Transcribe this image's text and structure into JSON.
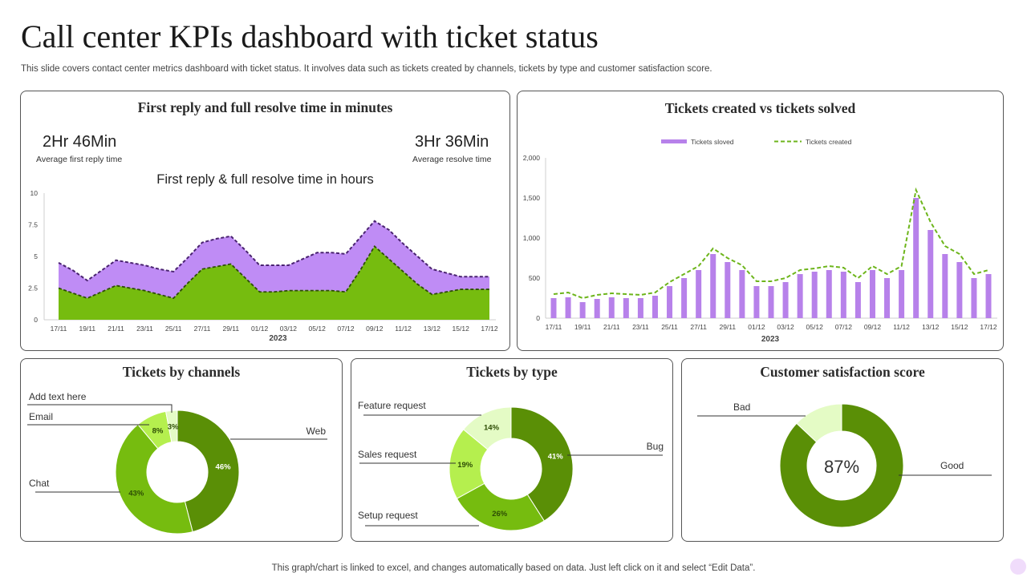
{
  "page": {
    "title": "Call center KPIs dashboard with ticket status",
    "subtitle": "This slide covers contact center metrics dashboard with ticket status. It involves data such as tickets created by channels, tickets by type and customer satisfaction score.",
    "footer": "This graph/chart is linked to excel, and changes automatically based on data. Just left click on it and select “Edit Data”."
  },
  "panels": {
    "resolve": {
      "title": "First reply and full resolve time in minutes",
      "kpi_reply_value": "2Hr  46Min",
      "kpi_reply_label": "Average first reply time",
      "kpi_resolve_value": "3Hr  36Min",
      "kpi_resolve_label": "Average resolve time",
      "chart_title": "First reply & full resolve time in hours"
    },
    "tickets": {
      "title": "Tickets created vs tickets solved"
    },
    "channels": {
      "title": "Tickets by channels"
    },
    "type": {
      "title": "Tickets by type"
    },
    "csat": {
      "title": "Customer satisfaction score",
      "center_label": "87%"
    }
  },
  "colors": {
    "purple": "#bf8cf5",
    "purple_bar": "#b781ea",
    "purple_dark": "#4a2370",
    "green": "#76bc0f",
    "green_dark": "#5a8f06",
    "green_mid": "#76bc0f",
    "green_light": "#b5ef4e",
    "green_pale": "#e4fbc5",
    "line_green": "#6db51b"
  },
  "chart_data": [
    {
      "type": "area",
      "title": "First reply & full resolve time in hours",
      "xlabel": "2023",
      "ylabel": "",
      "categories": [
        "17/11",
        "18/11",
        "19/11",
        "20/11",
        "21/11",
        "22/11",
        "23/11",
        "24/11",
        "25/11",
        "26/11",
        "27/11",
        "28/11",
        "29/11",
        "30/11",
        "01/12",
        "02/12",
        "03/12",
        "04/12",
        "05/12",
        "06/12",
        "07/12",
        "08/12",
        "09/12",
        "10/12",
        "11/12",
        "12/12",
        "13/12",
        "14/12",
        "15/12",
        "16/12",
        "17/12"
      ],
      "tick_labels": [
        "17/11",
        "19/11",
        "21/11",
        "23/11",
        "25/11",
        "27/11",
        "29/11",
        "01/12",
        "03/12",
        "05/12",
        "07/12",
        "09/12",
        "11/12",
        "13/12",
        "15/12",
        "17/12"
      ],
      "yticks": [
        "0",
        "2.5",
        "5",
        "7.5",
        "10"
      ],
      "ylim": [
        0,
        10
      ],
      "series": [
        {
          "values": [
            4.5,
            3.9,
            3.1,
            3.9,
            4.7,
            4.5,
            4.3,
            4.0,
            3.8,
            4.9,
            6.1,
            6.4,
            6.6,
            5.5,
            4.3,
            4.3,
            4.3,
            4.8,
            5.3,
            5.3,
            5.2,
            6.5,
            7.8,
            7.1,
            6.0,
            5.0,
            4.0,
            3.7,
            3.4,
            3.4,
            3.4
          ]
        },
        {
          "values": [
            2.5,
            2.1,
            1.7,
            2.2,
            2.7,
            2.5,
            2.3,
            2.0,
            1.7,
            2.9,
            4.0,
            4.2,
            4.4,
            3.3,
            2.2,
            2.2,
            2.3,
            2.3,
            2.3,
            2.3,
            2.2,
            3.9,
            5.8,
            4.8,
            3.8,
            2.8,
            2.0,
            2.2,
            2.4,
            2.4,
            2.4
          ]
        }
      ]
    },
    {
      "type": "bar",
      "title": "Tickets created vs tickets solved",
      "xlabel": "2023",
      "ylabel": "",
      "categories": [
        "17/11",
        "18/11",
        "19/11",
        "20/11",
        "21/11",
        "22/11",
        "23/11",
        "24/11",
        "25/11",
        "26/11",
        "27/11",
        "28/11",
        "29/11",
        "30/11",
        "01/12",
        "02/12",
        "03/12",
        "04/12",
        "05/12",
        "06/12",
        "07/12",
        "08/12",
        "09/12",
        "10/12",
        "11/12",
        "12/12",
        "13/12",
        "14/12",
        "15/12",
        "16/12",
        "17/12"
      ],
      "tick_labels": [
        "17/11",
        "19/11",
        "21/11",
        "23/11",
        "25/11",
        "27/11",
        "29/11",
        "01/12",
        "03/12",
        "05/12",
        "07/12",
        "09/12",
        "11/12",
        "13/12",
        "15/12",
        "17/12"
      ],
      "yticks": [
        "0",
        "500",
        "1,000",
        "1,500",
        "2,000"
      ],
      "ylim": [
        0,
        2000
      ],
      "legend": "top",
      "series": [
        {
          "name": "Tickets sloved",
          "type": "bar",
          "values": [
            250,
            260,
            200,
            240,
            260,
            250,
            250,
            280,
            400,
            500,
            600,
            800,
            700,
            600,
            400,
            400,
            450,
            550,
            580,
            600,
            580,
            450,
            600,
            500,
            600,
            1500,
            1100,
            800,
            700,
            500,
            550
          ]
        },
        {
          "name": "Tickets created",
          "type": "line",
          "values": [
            300,
            320,
            250,
            290,
            310,
            300,
            290,
            320,
            450,
            550,
            650,
            870,
            750,
            660,
            460,
            460,
            500,
            600,
            620,
            650,
            630,
            500,
            650,
            550,
            650,
            1600,
            1200,
            900,
            800,
            550,
            600
          ]
        }
      ]
    },
    {
      "type": "pie",
      "title": "Tickets by channels",
      "labels": [
        "Web",
        "Chat",
        "Email",
        "Add text here"
      ],
      "values": [
        46,
        43,
        8,
        3
      ],
      "value_labels": [
        "46%",
        "43%",
        "8%",
        "3%"
      ]
    },
    {
      "type": "pie",
      "title": "Tickets by type",
      "labels": [
        "Bug",
        "Setup request",
        "Sales request",
        "Feature request"
      ],
      "values": [
        41,
        26,
        19,
        14
      ],
      "value_labels": [
        "41%",
        "26%",
        "19%",
        "14%"
      ]
    },
    {
      "type": "pie",
      "title": "Customer satisfaction score",
      "labels": [
        "Good",
        "Bad"
      ],
      "values": [
        87,
        13
      ]
    }
  ]
}
